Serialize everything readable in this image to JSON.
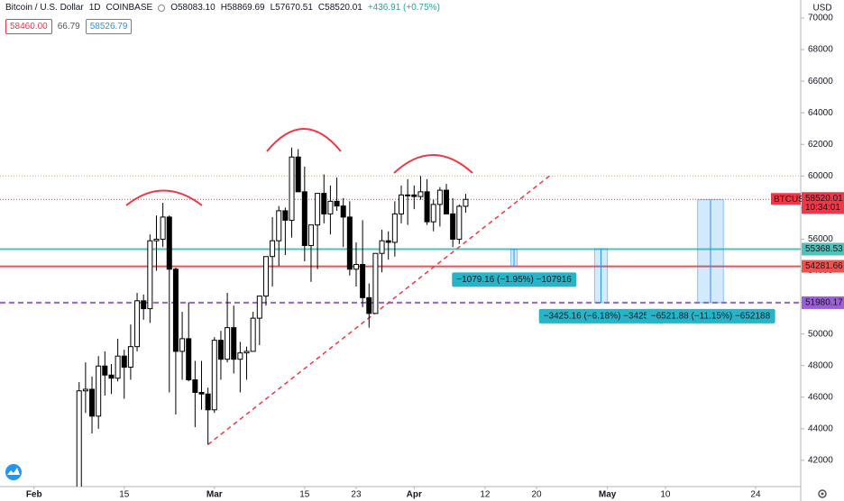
{
  "chart_data": {
    "type": "candlestick",
    "header": {
      "symbol": "Bitcoin / U.S. Dollar",
      "interval": "1D",
      "exchange": "COINBASE",
      "ohlc": [
        "O58083.10",
        "H58869.69",
        "L57670.51",
        "C58520.01"
      ],
      "change": "+436.91 (+0.75%)",
      "boxes": [
        "58460.00",
        "66.79",
        "58526.79"
      ]
    },
    "currency": "USD",
    "symbol_tag": "BTCUSD",
    "countdown": "10:34:01",
    "up_color": "#ffffff",
    "down_color": "#000000",
    "outline_color": "#000000",
    "x": [
      "Feb 8",
      "Feb 9",
      "Feb 10",
      "Feb 11",
      "Feb 12",
      "Feb 13",
      "Feb 14",
      "Feb 15",
      "Feb 16",
      "Feb 17",
      "Feb 18",
      "Feb 19",
      "Feb 20",
      "Feb 21",
      "Feb 22",
      "Feb 23",
      "Feb 24",
      "Feb 25",
      "Feb 26",
      "Feb 27",
      "Feb 28",
      "Mar 1",
      "Mar 2",
      "Mar 3",
      "Mar 4",
      "Mar 5",
      "Mar 6",
      "Mar 7",
      "Mar 8",
      "Mar 9",
      "Mar 10",
      "Mar 11",
      "Mar 12",
      "Mar 13",
      "Mar 14",
      "Mar 15",
      "Mar 16",
      "Mar 17",
      "Mar 18",
      "Mar 19",
      "Mar 20",
      "Mar 21",
      "Mar 22",
      "Mar 23",
      "Mar 24",
      "Mar 25",
      "Mar 26",
      "Mar 27",
      "Mar 28",
      "Mar 29",
      "Mar 30",
      "Mar 31",
      "Apr 1",
      "Apr 2",
      "Apr 3",
      "Apr 4",
      "Apr 5",
      "Apr 6",
      "Apr 7",
      "Apr 8",
      "Apr 9"
    ],
    "open": [
      38900,
      46400,
      46500,
      44800,
      47970,
      47400,
      47200,
      48600,
      47900,
      49200,
      52100,
      51600,
      55900,
      56000,
      57400,
      54100,
      48900,
      49700,
      47100,
      46300,
      46200,
      45200,
      49600,
      48400,
      50400,
      48400,
      48800,
      48900,
      51000,
      52400,
      54900,
      55900,
      57800,
      57200,
      61200,
      59000,
      55600,
      56900,
      58900,
      57600,
      58400,
      58100,
      57400,
      54100,
      54400,
      52300,
      51300,
      55100,
      55900,
      55800,
      57600,
      58800,
      58800,
      58700,
      59000,
      57100,
      58200,
      59100,
      57600,
      56000,
      58083.1
    ],
    "high": [
      46950,
      48200,
      47300,
      48600,
      48900,
      48100,
      49700,
      49000,
      50600,
      52600,
      52500,
      56300,
      57500,
      58300,
      57500,
      54200,
      51400,
      52000,
      48300,
      48300,
      46600,
      49800,
      50200,
      52600,
      51800,
      49500,
      49200,
      51400,
      52400,
      54900,
      57400,
      58100,
      58000,
      61800,
      61700,
      60600,
      56900,
      58900,
      60100,
      59400,
      59900,
      58600,
      58400,
      55800,
      57200,
      53200,
      55100,
      56600,
      56500,
      58400,
      59400,
      59800,
      59400,
      60000,
      59800,
      58500,
      59300,
      59500,
      58600,
      58200,
      58869.69
    ],
    "low": [
      37900,
      45000,
      43700,
      44000,
      46100,
      46200,
      47000,
      45900,
      47100,
      48900,
      50900,
      50700,
      54000,
      55500,
      46300,
      44900,
      47100,
      47000,
      44100,
      45200,
      43000,
      45000,
      47100,
      48200,
      47500,
      46300,
      47100,
      48900,
      49300,
      51800,
      53000,
      54300,
      55000,
      56100,
      59000,
      54600,
      53300,
      54100,
      57000,
      56300,
      57800,
      55500,
      53700,
      53000,
      51700,
      50400,
      51300,
      53900,
      54700,
      54900,
      57000,
      56900,
      57900,
      58500,
      56900,
      56500,
      56800,
      57600,
      55500,
      55700,
      57670.51
    ],
    "close": [
      46400,
      46500,
      44800,
      47970,
      47400,
      47200,
      48600,
      47900,
      49200,
      52100,
      51600,
      55900,
      56000,
      57400,
      54100,
      48900,
      49700,
      47100,
      46300,
      46200,
      45200,
      49600,
      48400,
      50400,
      48400,
      48800,
      48900,
      51000,
      52400,
      54900,
      55900,
      57800,
      57200,
      61200,
      59000,
      55600,
      56900,
      58900,
      57600,
      58400,
      58100,
      57400,
      54100,
      54400,
      52300,
      51300,
      55100,
      55900,
      55800,
      57600,
      58800,
      58800,
      58700,
      59000,
      57100,
      58200,
      59100,
      57600,
      56000,
      58083.1,
      58520.01
    ],
    "xlim": [
      "Jan 27",
      "May 31"
    ],
    "xticks": [
      {
        "value": "Feb 1",
        "label": "Feb"
      },
      {
        "value": "Feb 15",
        "label": "15"
      },
      {
        "value": "Mar 1",
        "label": "Mar"
      },
      {
        "value": "Mar 15",
        "label": "15"
      },
      {
        "value": "Mar 23",
        "label": "23"
      },
      {
        "value": "Apr 1",
        "label": "Apr"
      },
      {
        "value": "Apr 12",
        "label": "12"
      },
      {
        "value": "Apr 20",
        "label": "20"
      },
      {
        "value": "May 1",
        "label": "May"
      },
      {
        "value": "May 10",
        "label": "10"
      },
      {
        "value": "May 24",
        "label": "24"
      }
    ],
    "ylim": [
      40340,
      71140
    ],
    "yticks": [
      42000,
      44000,
      46000,
      48000,
      50000,
      52000,
      54000,
      56000,
      58000,
      60000,
      62000,
      64000,
      66000,
      68000,
      70000
    ],
    "price_line_color": "#f23645",
    "hlines": [
      {
        "value": 60000,
        "color": "#f4a261",
        "style": "dotted",
        "axis_label": false
      },
      {
        "value": 55368.53,
        "color": "#4fc3b9",
        "style": "solid",
        "axis_label": true
      },
      {
        "value": 54281.66,
        "color": "#ef5350",
        "style": "solid",
        "axis_label": true
      },
      {
        "value": 51980.17,
        "color": "#9c5fd6",
        "style": "dashed",
        "axis_label": true
      }
    ],
    "trendline": {
      "x": [
        "Feb 28",
        "Apr 22"
      ],
      "values": [
        43000,
        60000
      ],
      "color": "#f23645"
    },
    "measures": [
      {
        "x": [
          "Apr 16",
          "Apr 17"
        ],
        "from": 55368.53,
        "to": 54289.37,
        "label": "−1079.16 (−1.95%) −107916"
      },
      {
        "x": [
          "Apr 29",
          "May 1"
        ],
        "from": 55405.33,
        "to": 51980.17,
        "label": "−3425.16 (−6.18%) −342516"
      },
      {
        "x": [
          "May 15",
          "May 19"
        ],
        "from": 58502.05,
        "to": 51980.17,
        "label": "−6521.88 (−11.15%) −652188"
      }
    ]
  }
}
